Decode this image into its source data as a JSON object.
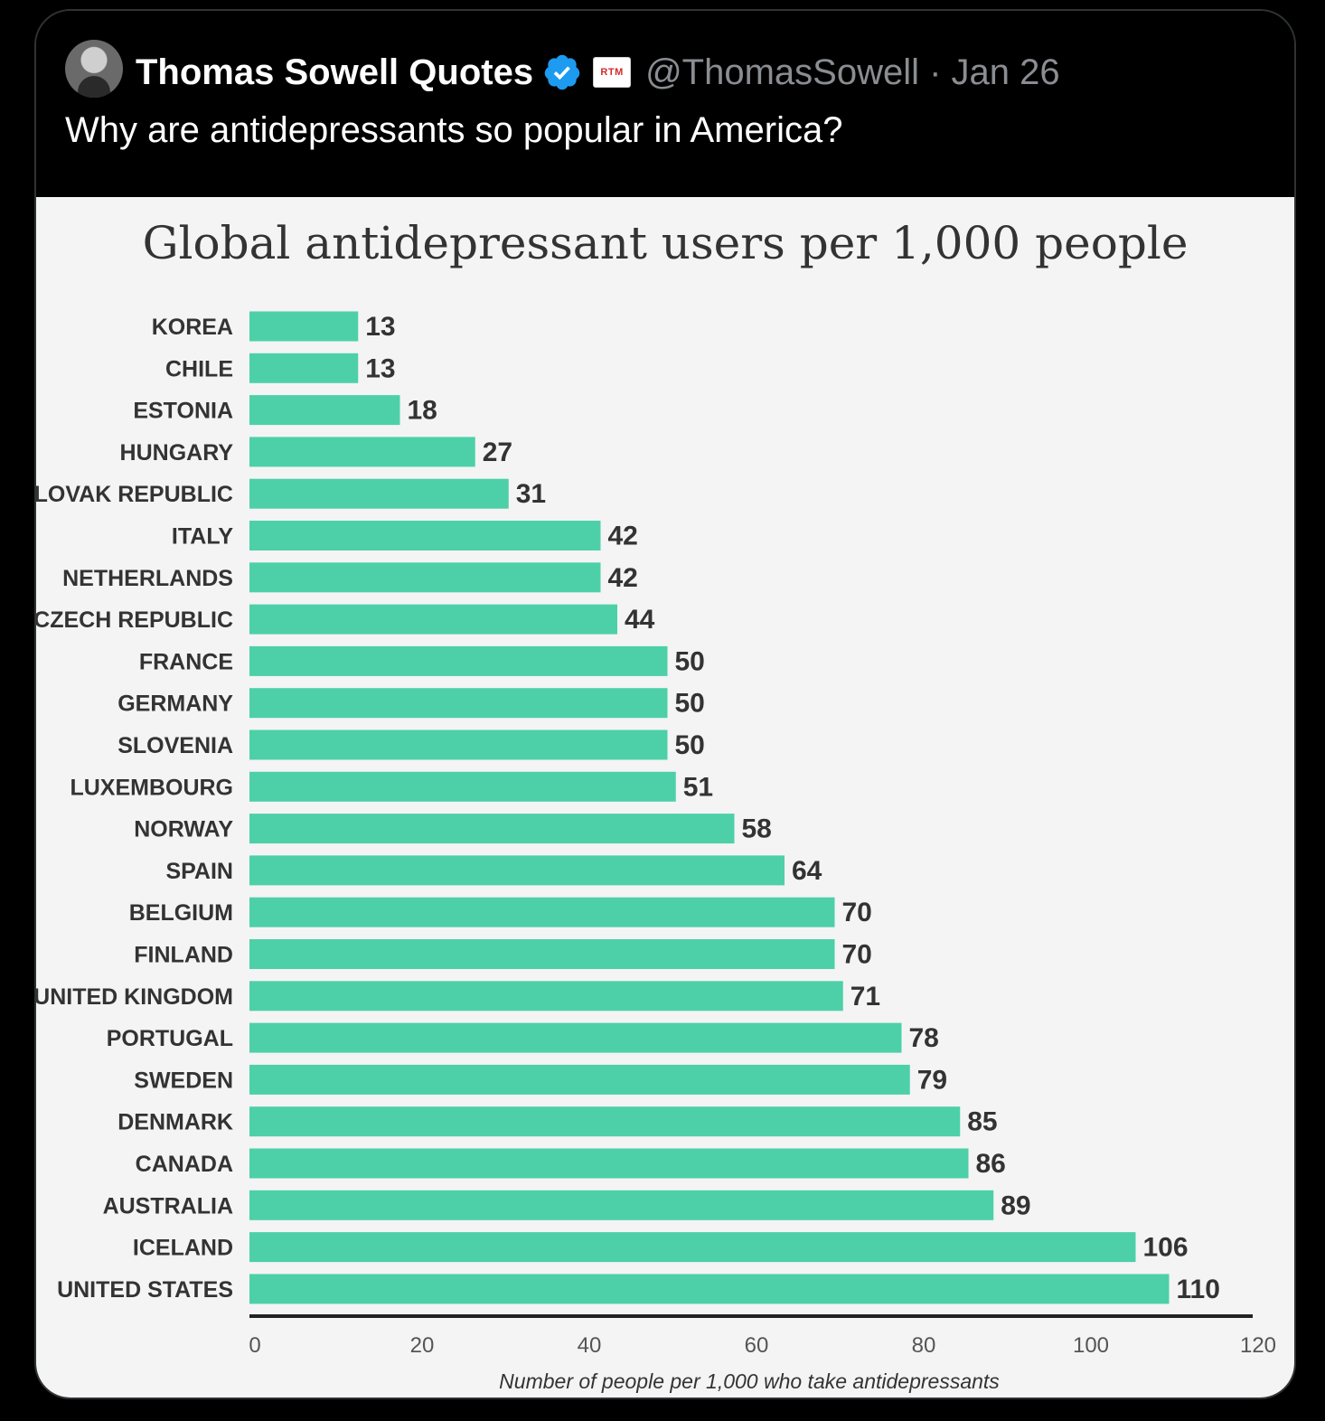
{
  "tweet": {
    "display_name": "Thomas Sowell Quotes",
    "affiliate_label": "RTM",
    "handle_date": "@ThomasSowell · Jan 26",
    "text": "Why are antidepressants so popular in America?"
  },
  "colors": {
    "bar": "#4dd0a8",
    "verified": "#1d9bf0"
  },
  "chart_data": {
    "type": "bar",
    "orientation": "horizontal",
    "title": "Global antidepressant users per 1,000 people",
    "xlabel": "Number of people per 1,000 who take antidepressants",
    "ylabel": "",
    "xlim": [
      0,
      120
    ],
    "xticks": [
      0,
      20,
      40,
      60,
      80,
      100,
      120
    ],
    "categories": [
      "KOREA",
      "CHILE",
      "ESTONIA",
      "HUNGARY",
      "SLOVAK REPUBLIC",
      "ITALY",
      "NETHERLANDS",
      "CZECH REPUBLIC",
      "FRANCE",
      "GERMANY",
      "SLOVENIA",
      "LUXEMBOURG",
      "NORWAY",
      "SPAIN",
      "BELGIUM",
      "FINLAND",
      "UNITED KINGDOM",
      "PORTUGAL",
      "SWEDEN",
      "DENMARK",
      "CANADA",
      "AUSTRALIA",
      "ICELAND",
      "UNITED STATES"
    ],
    "values": [
      13,
      13,
      18,
      27,
      31,
      42,
      42,
      44,
      50,
      50,
      50,
      51,
      58,
      64,
      70,
      70,
      71,
      78,
      79,
      85,
      86,
      89,
      106,
      110
    ],
    "grid": false,
    "legend": "none"
  }
}
